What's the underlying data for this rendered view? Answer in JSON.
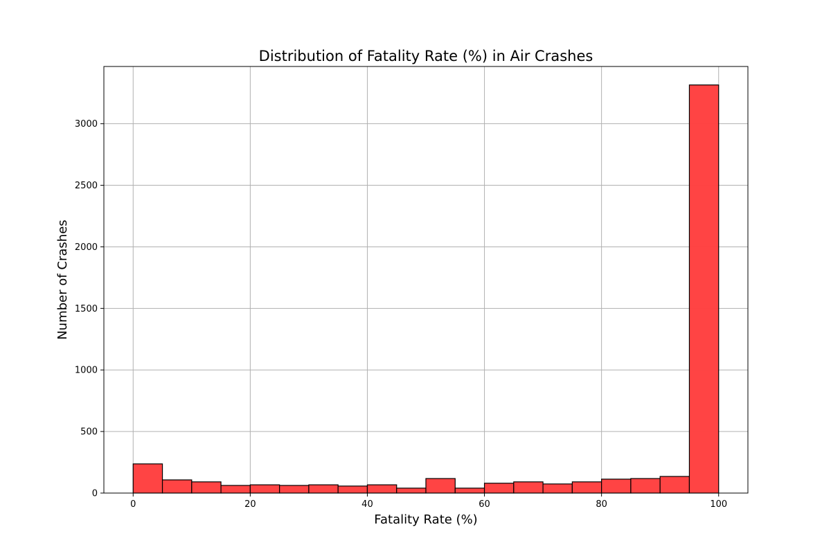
{
  "chart_data": {
    "type": "bar",
    "subtype": "histogram",
    "title": "Distribution of Fatality Rate (%) in Air Crashes",
    "xlabel": "Fatality Rate (%)",
    "ylabel": "Number of Crashes",
    "xlim": [
      -5,
      105
    ],
    "ylim": [
      0,
      3465
    ],
    "x_ticks": [
      0,
      20,
      40,
      60,
      80,
      100
    ],
    "y_ticks": [
      0,
      500,
      1000,
      1500,
      2000,
      2500,
      3000
    ],
    "grid": true,
    "bar_color": "#ff4040",
    "edge_color": "#000000",
    "bins": [
      {
        "x0": 0,
        "x1": 5,
        "count": 237
      },
      {
        "x0": 5,
        "x1": 10,
        "count": 107
      },
      {
        "x0": 10,
        "x1": 15,
        "count": 91
      },
      {
        "x0": 15,
        "x1": 20,
        "count": 62
      },
      {
        "x0": 20,
        "x1": 25,
        "count": 67
      },
      {
        "x0": 25,
        "x1": 30,
        "count": 62
      },
      {
        "x0": 30,
        "x1": 35,
        "count": 67
      },
      {
        "x0": 35,
        "x1": 40,
        "count": 57
      },
      {
        "x0": 40,
        "x1": 45,
        "count": 67
      },
      {
        "x0": 45,
        "x1": 50,
        "count": 40
      },
      {
        "x0": 50,
        "x1": 55,
        "count": 118
      },
      {
        "x0": 55,
        "x1": 60,
        "count": 40
      },
      {
        "x0": 60,
        "x1": 65,
        "count": 80
      },
      {
        "x0": 65,
        "x1": 70,
        "count": 91
      },
      {
        "x0": 70,
        "x1": 75,
        "count": 74
      },
      {
        "x0": 75,
        "x1": 80,
        "count": 91
      },
      {
        "x0": 80,
        "x1": 85,
        "count": 113
      },
      {
        "x0": 85,
        "x1": 90,
        "count": 118
      },
      {
        "x0": 90,
        "x1": 95,
        "count": 135
      },
      {
        "x0": 95,
        "x1": 100,
        "count": 3315
      }
    ]
  }
}
